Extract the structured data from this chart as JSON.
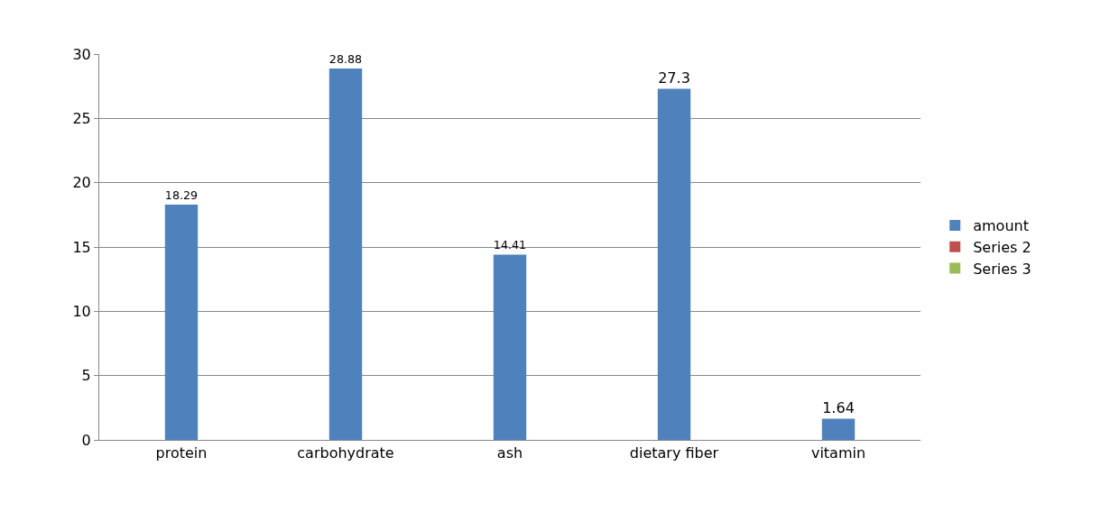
{
  "chart_data": {
    "type": "bar",
    "categories": [
      "protein",
      "carbohydrate",
      "ash",
      "dietary fiber",
      "vitamin"
    ],
    "series": [
      {
        "name": "amount",
        "color": "#4f81bd",
        "values": [
          18.29,
          28.88,
          14.41,
          27.3,
          1.64
        ]
      },
      {
        "name": "Series 2",
        "color": "#c0504d",
        "values": [
          null,
          null,
          null,
          null,
          null
        ]
      },
      {
        "name": "Series 3",
        "color": "#9bbb59",
        "values": [
          null,
          null,
          null,
          null,
          null
        ]
      }
    ],
    "ylim": [
      0,
      30
    ],
    "yticks": [
      0,
      5,
      10,
      15,
      20,
      25,
      30
    ],
    "grid": "y",
    "legend": "right",
    "data_labels": true
  }
}
